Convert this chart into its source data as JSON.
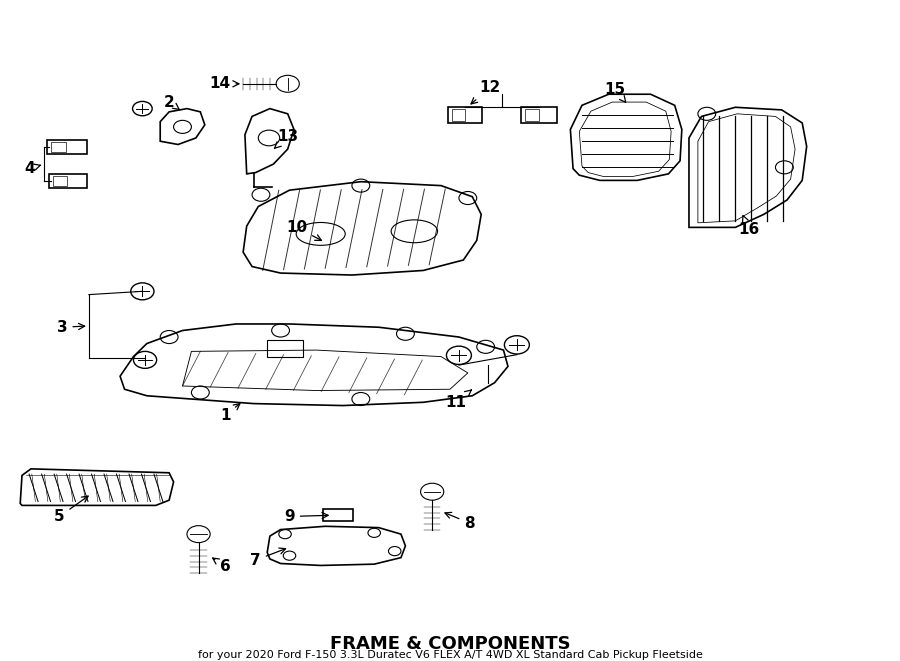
{
  "title": "FRAME & COMPONENTS",
  "subtitle": "for your 2020 Ford F-150 3.3L Duratec V6 FLEX A/T 4WD XL Standard Cab Pickup Fleetside",
  "background_color": "#ffffff",
  "line_color": "#000000",
  "text_color": "#000000",
  "label_fontsize": 11,
  "title_fontsize": 13,
  "subtitle_fontsize": 8
}
